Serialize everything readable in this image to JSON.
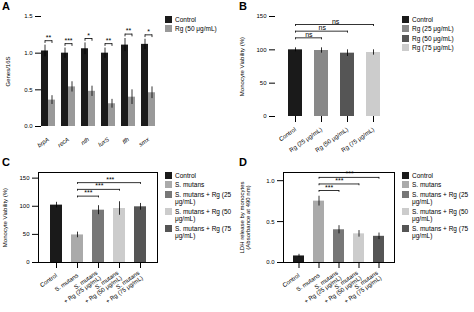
{
  "chart_data": [
    {
      "type": "bar",
      "title": "A",
      "ylabel": "Genes/16S",
      "categories": [
        "brpA",
        "recA",
        "nth",
        "luxS",
        "ffh",
        "smx"
      ],
      "series": [
        {
          "name": "Control",
          "color": "#1a1a1a",
          "values": [
            1.03,
            1.0,
            1.06,
            1.0,
            1.11,
            1.12
          ],
          "errors": [
            0.08,
            0.07,
            0.08,
            0.07,
            0.09,
            0.07
          ]
        },
        {
          "name": "Rg (50 μg/mL)",
          "color": "#999999",
          "values": [
            0.36,
            0.54,
            0.48,
            0.31,
            0.4,
            0.46
          ],
          "errors": [
            0.06,
            0.07,
            0.07,
            0.06,
            0.1,
            0.08
          ]
        }
      ],
      "ylim": [
        0,
        1.5
      ],
      "yticks": [
        {
          "value": 0,
          "label": "0.0"
        },
        0.5,
        {
          "value": 1,
          "label": "1.0"
        },
        1.5
      ],
      "legend": "upper right",
      "annotations": [
        {
          "text": "**",
          "category": "brpA"
        },
        {
          "text": "***",
          "category": "recA"
        },
        {
          "text": "*",
          "category": "nth"
        },
        {
          "text": "**",
          "category": "luxS"
        },
        {
          "text": "**",
          "category": "ffh"
        },
        {
          "text": "*",
          "category": "smx"
        }
      ]
    },
    {
      "type": "bar",
      "title": "B",
      "ylabel": "Monocyte Viability (%)",
      "categories": [
        "Control",
        "Rg (25 μg/mL)",
        "Rg (50 μg/mL)",
        "Rg (75 μg/mL)"
      ],
      "values": [
        100,
        99,
        95,
        96
      ],
      "errors": [
        3,
        4,
        5,
        4
      ],
      "colors": [
        "#1a1a1a",
        "#888888",
        "#555555",
        "#cccccc"
      ],
      "ylim": [
        0,
        150
      ],
      "yticks": [
        0,
        50,
        100,
        150
      ],
      "legend": "upper right",
      "annotations": [
        {
          "text": "ns",
          "from": "Control",
          "to": "Rg (25 μg/mL)",
          "y": 118
        },
        {
          "text": "ns",
          "from": "Control",
          "to": "Rg (50 μg/mL)",
          "y": 128
        },
        {
          "text": "ns",
          "from": "Control",
          "to": "Rg (75 μg/mL)",
          "y": 138
        }
      ]
    },
    {
      "type": "bar",
      "title": "C",
      "ylabel": "Monocyte Viability (%)",
      "categories": [
        "Control",
        "S. mutans",
        "S. mutans\n+ Rg (25 μg/mL)",
        "S. mutans\n+ Rg (50 μg/mL)",
        "S. mutans\n+ Rg (75 μg/mL)"
      ],
      "values": [
        102,
        49,
        93,
        96,
        99
      ],
      "errors": [
        5,
        5,
        8,
        12,
        6
      ],
      "colors": [
        "#1a1a1a",
        "#aaaaaa",
        "#777777",
        "#cccccc",
        "#555555"
      ],
      "ylim": [
        0,
        160
      ],
      "yticks": [
        0,
        50,
        100,
        150
      ],
      "legend": "upper right",
      "annotations": [
        {
          "text": "***",
          "from": "S. mutans",
          "to": "S. mutans\n+ Rg (25 μg/mL)",
          "y": 118
        },
        {
          "text": "***",
          "from": "S. mutans",
          "to": "S. mutans\n+ Rg (50 μg/mL)",
          "y": 130
        },
        {
          "text": "***",
          "from": "S. mutans",
          "to": "S. mutans\n+ Rg (75 μg/mL)",
          "y": 142
        }
      ]
    },
    {
      "type": "bar",
      "title": "D",
      "ylabel": "LDH release by monocytes\n(Absorbance at 490 nm)",
      "categories": [
        "Control",
        "S. mutans",
        "S. mutans\n+ Rg (25 μg/mL)",
        "S. mutans\n+ Rg (50 μg/mL)",
        "S. mutans\n+ Rg (75 μg/mL)"
      ],
      "values": [
        0.08,
        0.75,
        0.4,
        0.35,
        0.32
      ],
      "errors": [
        0.02,
        0.06,
        0.05,
        0.04,
        0.04
      ],
      "colors": [
        "#1a1a1a",
        "#aaaaaa",
        "#777777",
        "#cccccc",
        "#555555"
      ],
      "ylim": [
        0,
        1.1
      ],
      "yticks": [
        {
          "value": 0,
          "label": "0.0"
        },
        0.5,
        {
          "value": 1,
          "label": "1.0"
        }
      ],
      "legend": "upper right",
      "annotations": [
        {
          "text": "***",
          "from": "S. mutans",
          "to": "S. mutans\n+ Rg (25 μg/mL)",
          "y": 0.88
        },
        {
          "text": "***",
          "from": "S. mutans",
          "to": "S. mutans\n+ Rg (50 μg/mL)",
          "y": 0.96
        },
        {
          "text": "***",
          "from": "S. mutans",
          "to": "S. mutans\n+ Rg (75 μg/mL)",
          "y": 1.04
        }
      ]
    }
  ]
}
